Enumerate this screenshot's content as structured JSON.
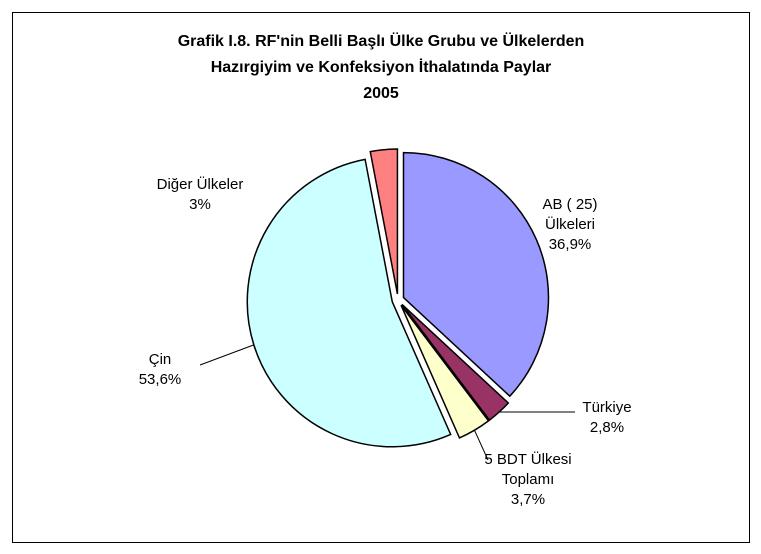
{
  "chart_data": {
    "type": "pie",
    "title": [
      "Grafik I.8.  RF'nin Belli Başlı Ülke Grubu ve Ülkelerden",
      "Hazırgiyim ve Konfeksiyon İthalatında Paylar",
      "2005"
    ],
    "categories": [
      "AB ( 25) Ülkeleri",
      "Türkiye",
      "5 BDT Ülkesi Toplamı",
      "Çin",
      "Diğer Ülkeler"
    ],
    "values": [
      36.9,
      2.8,
      3.7,
      53.6,
      3
    ],
    "value_labels": [
      "36,9%",
      "2,8%",
      "3,7%",
      "53,6%",
      "3%"
    ],
    "colors": [
      "#9999ff",
      "#993366",
      "#ffffcc",
      "#ccffff",
      "#ff8080"
    ]
  }
}
